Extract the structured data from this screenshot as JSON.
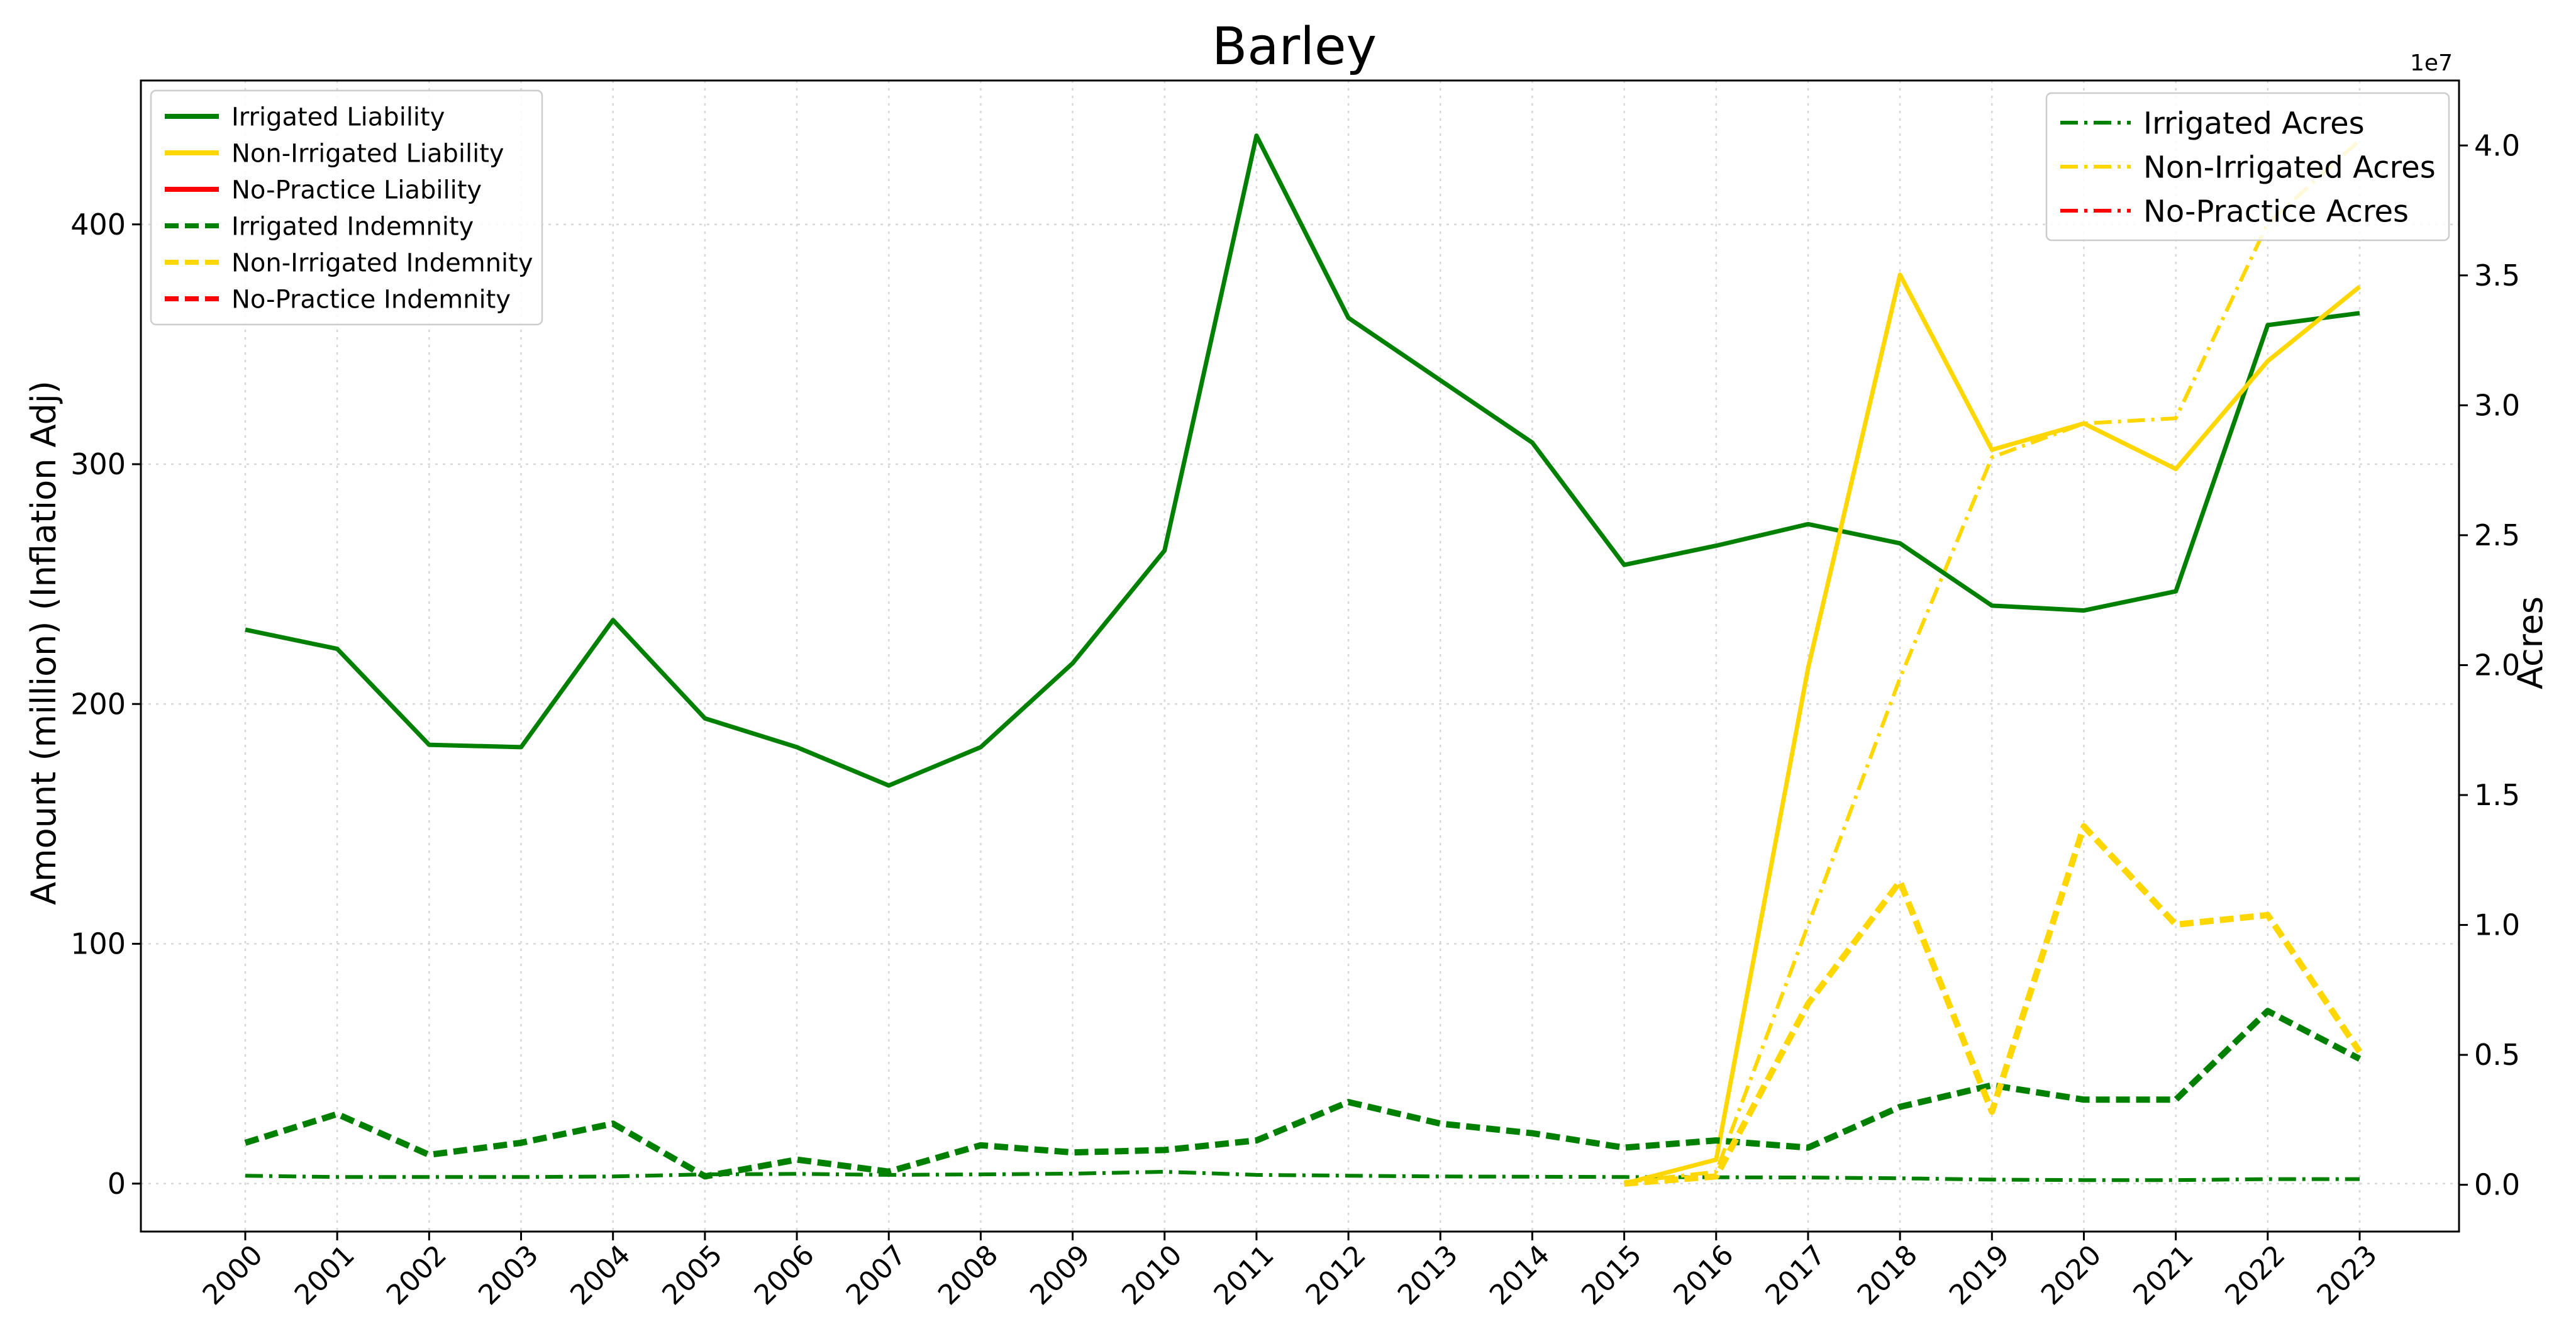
{
  "chart_data": {
    "type": "line",
    "title": "Barley",
    "xlabel": "",
    "ylabel": "Amount (million) (Inflation Adj)",
    "y2label": "Acres",
    "y2_exponent": "1e7",
    "grid": true,
    "x": [
      2000,
      2001,
      2002,
      2003,
      2004,
      2005,
      2006,
      2007,
      2008,
      2009,
      2010,
      2011,
      2012,
      2013,
      2014,
      2015,
      2016,
      2017,
      2018,
      2019,
      2020,
      2021,
      2022,
      2023
    ],
    "xticks": [
      "2000",
      "2001",
      "2002",
      "2003",
      "2004",
      "2005",
      "2006",
      "2007",
      "2008",
      "2009",
      "2010",
      "2011",
      "2012",
      "2013",
      "2014",
      "2015",
      "2016",
      "2017",
      "2018",
      "2019",
      "2020",
      "2021",
      "2022",
      "2023"
    ],
    "ylim": [
      -20,
      460
    ],
    "yticks": [
      0,
      100,
      200,
      300,
      400
    ],
    "ytick_labels": [
      "0",
      "100",
      "200",
      "300",
      "400"
    ],
    "y2lim": [
      -1800000,
      42500000
    ],
    "y2ticks": [
      0,
      5000000,
      10000000,
      15000000,
      20000000,
      25000000,
      30000000,
      35000000,
      40000000
    ],
    "y2tick_labels": [
      "0.0",
      "0.5",
      "1.0",
      "1.5",
      "2.0",
      "2.5",
      "3.0",
      "3.5",
      "4.0"
    ],
    "colors": {
      "irrigated": "#008000",
      "non_irrigated": "#FFD700",
      "no_practice": "#FF0000"
    },
    "series_left": [
      {
        "name": "Irrigated Liability",
        "color": "#008000",
        "style": "solid",
        "values": [
          231,
          223,
          183,
          182,
          235,
          194,
          182,
          166,
          182,
          217,
          264,
          437,
          361,
          335,
          309,
          258,
          266,
          275,
          267,
          241,
          239,
          247,
          358,
          363
        ]
      },
      {
        "name": "Non-Irrigated Liability",
        "color": "#FFD700",
        "style": "solid",
        "values": [
          null,
          null,
          null,
          null,
          null,
          null,
          null,
          null,
          null,
          null,
          null,
          null,
          null,
          null,
          null,
          0,
          10,
          215,
          379,
          306,
          317,
          298,
          343,
          374
        ]
      },
      {
        "name": "No-Practice Liability",
        "color": "#FF0000",
        "style": "solid",
        "values": []
      },
      {
        "name": "Irrigated Indemnity",
        "color": "#008000",
        "style": "dashed",
        "values": [
          17,
          29,
          12,
          17,
          25,
          3,
          10,
          5,
          16,
          13,
          14,
          18,
          34,
          25,
          21,
          15,
          18,
          15,
          32,
          41,
          35,
          35,
          72,
          52
        ]
      },
      {
        "name": "Non-Irrigated Indemnity",
        "color": "#FFD700",
        "style": "dashed",
        "values": [
          null,
          null,
          null,
          null,
          null,
          null,
          null,
          null,
          null,
          null,
          null,
          null,
          null,
          null,
          null,
          0,
          3,
          75,
          126,
          30,
          149,
          108,
          112,
          55
        ]
      },
      {
        "name": "No-Practice Indemnity",
        "color": "#FF0000",
        "style": "dashed",
        "values": []
      }
    ],
    "series_right": [
      {
        "name": "Irrigated Acres",
        "color": "#008000",
        "style": "dashdot",
        "values": [
          350000,
          300000,
          300000,
          300000,
          320000,
          400000,
          420000,
          380000,
          400000,
          430000,
          500000,
          380000,
          350000,
          320000,
          310000,
          300000,
          290000,
          280000,
          250000,
          200000,
          180000,
          180000,
          220000,
          220000
        ]
      },
      {
        "name": "Non-Irrigated Acres",
        "color": "#FFD700",
        "style": "dashdot",
        "values": [
          null,
          null,
          null,
          null,
          null,
          null,
          null,
          null,
          null,
          null,
          null,
          null,
          null,
          null,
          null,
          100000,
          500000,
          10000000,
          19500000,
          28000000,
          29300000,
          29500000,
          37000000,
          40200000
        ]
      },
      {
        "name": "No-Practice Acres",
        "color": "#FF0000",
        "style": "dashdot",
        "values": []
      }
    ],
    "legend_left_position": "top-left",
    "legend_right_position": "top-right"
  }
}
